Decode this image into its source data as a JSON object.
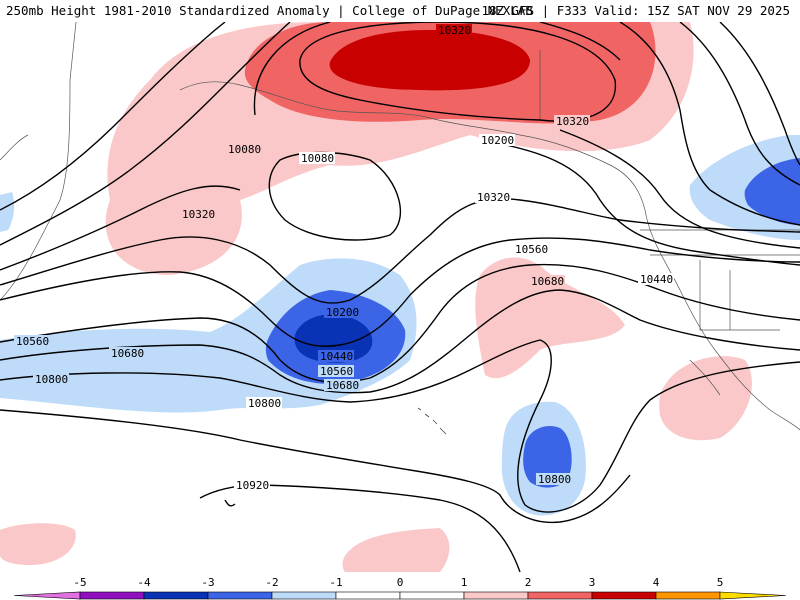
{
  "header": {
    "title": "250mb Height 1981-2010 Standardized Anomaly | College of DuPage NEXLAB",
    "run_info": "18Z GFS | F333 Valid: 15Z SAT NOV 29 2025"
  },
  "contour_labels": {
    "l10320_top": "10320",
    "l10080_a": "10080",
    "l10080_b": "10080",
    "l10320_a": "10320",
    "l10320_b": "10320",
    "l10320_c": "10320",
    "l10200_a": "10200",
    "l10200_b": "10200",
    "l10560_a": "10560",
    "l10560_b": "10560",
    "l10560_c": "10560",
    "l10680_a": "10680",
    "l10680_b": "10680",
    "l10680_c": "10680",
    "l10440_a": "10440",
    "l10440_b": "10440",
    "l10800_a": "10800",
    "l10800_b": "10800",
    "l10800_c": "10800",
    "l10920": "10920"
  },
  "colorbar": {
    "ticks": [
      "-5",
      "-4",
      "-3",
      "-2",
      "-1",
      "0",
      "1",
      "2",
      "3",
      "4",
      "5"
    ],
    "colors": [
      "#e070e0",
      "#9010c0",
      "#0a32b4",
      "#3c64e6",
      "#bedcfa",
      "#ffffff",
      "#ffffff",
      "#fac8c8",
      "#f06464",
      "#c80000",
      "#ff9600",
      "#ffdc00"
    ]
  }
}
